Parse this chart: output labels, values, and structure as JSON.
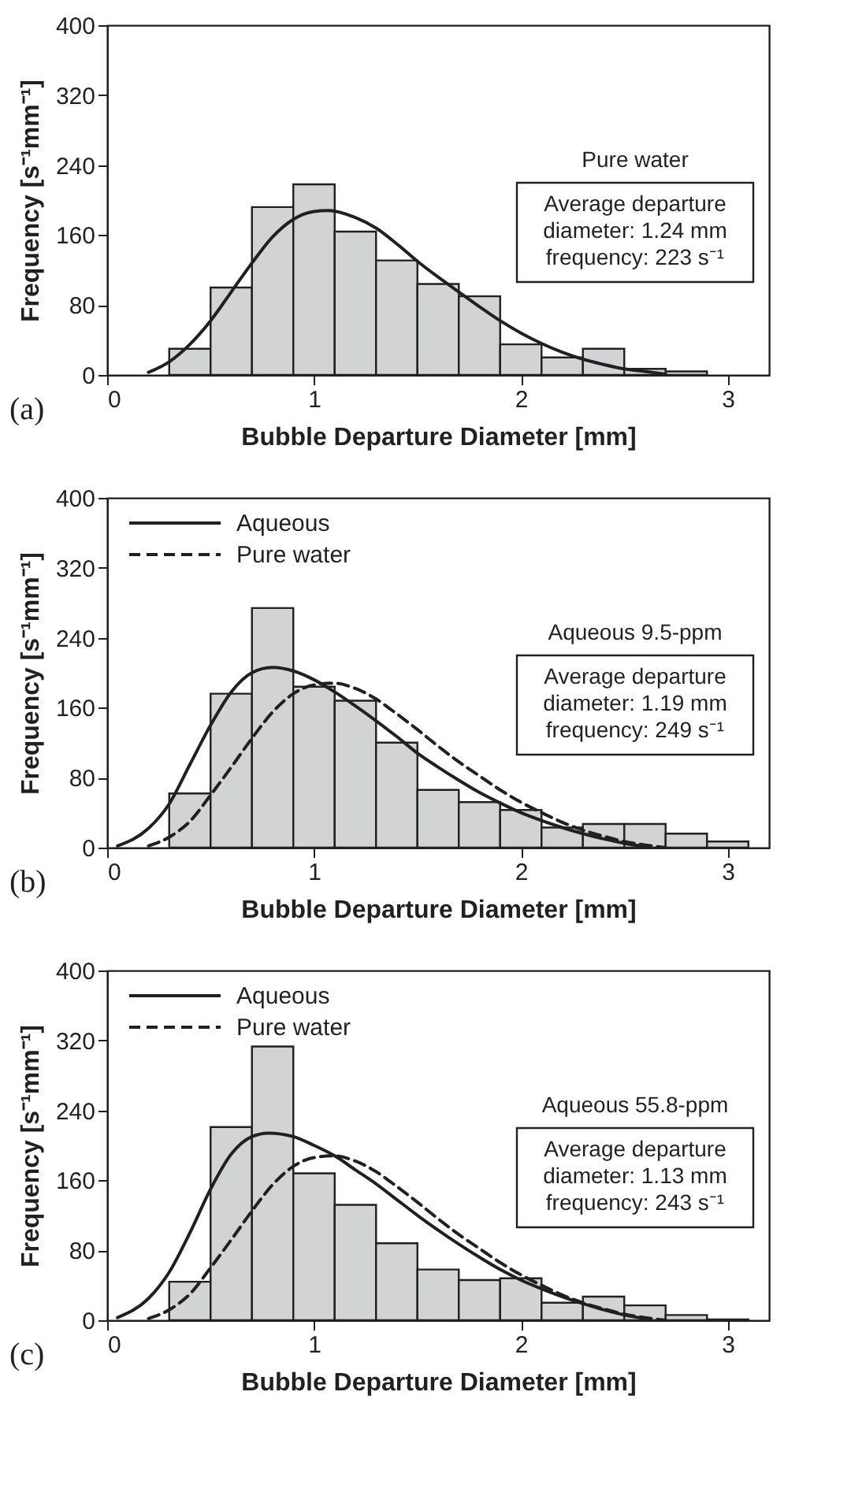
{
  "chart_data": [
    {
      "type": "histogram",
      "xlabel": "Bubble Departure Diameter [mm]",
      "ylabel": "Frequency [s⁻¹mm⁻¹]",
      "xlim": [
        0,
        3.2
      ],
      "ylim": [
        0,
        400
      ],
      "xticks": [
        0,
        1,
        2,
        3
      ],
      "yticks": [
        0,
        80,
        160,
        240,
        320,
        400
      ],
      "grid": false,
      "legend": false,
      "annotations": [
        "(a)",
        "Pure water",
        "Average departure\ndiameter: 1.24 mm\nfrequency:  223 s⁻¹"
      ],
      "series": [
        {
          "color": "#d1d3d4",
          "bins": [
            0.3,
            0.5,
            0.7,
            0.9,
            1.1,
            1.3,
            1.5,
            1.7,
            1.9,
            2.1,
            2.3,
            2.5,
            2.7,
            2.9
          ],
          "values": [
            30,
            100,
            192,
            218,
            164,
            131,
            104,
            90,
            35,
            20,
            30,
            7,
            4
          ]
        },
        {
          "type": "line",
          "color": "#231f20",
          "line_style": "solid",
          "x": [
            0.2,
            0.3,
            0.4,
            0.5,
            0.6,
            0.7,
            0.8,
            0.9,
            1.0,
            1.07,
            1.2,
            1.3,
            1.4,
            1.5,
            1.6,
            1.7,
            1.8,
            1.9,
            2.0,
            2.1,
            2.2,
            2.3,
            2.4,
            2.5,
            2.6,
            2.7
          ],
          "values": [
            3,
            15,
            35,
            62,
            95,
            128,
            158,
            178,
            187,
            188,
            180,
            168,
            150,
            130,
            112,
            95,
            78,
            62,
            48,
            36,
            26,
            18,
            12,
            7,
            4,
            1
          ]
        }
      ]
    },
    {
      "type": "histogram",
      "xlabel": "Bubble Departure Diameter [mm]",
      "ylabel": "Frequency [s⁻¹mm⁻¹]",
      "xlim": [
        0,
        3.2
      ],
      "ylim": [
        0,
        400
      ],
      "xticks": [
        0,
        1,
        2,
        3
      ],
      "yticks": [
        0,
        80,
        160,
        240,
        320,
        400
      ],
      "grid": false,
      "legend": "top left",
      "annotations": [
        "(b)",
        "Aqueous 9.5-ppm",
        "Average departure\ndiameter: 1.19 mm\nfrequency:  249 s⁻¹"
      ],
      "series": [
        {
          "color": "#d1d3d4",
          "bins": [
            0.3,
            0.5,
            0.7,
            0.9,
            1.1,
            1.3,
            1.5,
            1.7,
            1.9,
            2.1,
            2.3,
            2.5,
            2.7,
            2.9,
            3.1
          ],
          "values": [
            62,
            176,
            274,
            184,
            168,
            120,
            66,
            52,
            43,
            23,
            27,
            27,
            16,
            7
          ]
        },
        {
          "type": "line",
          "name": "Aqueous",
          "color": "#231f20",
          "line_style": "solid",
          "x": [
            0.05,
            0.2,
            0.3,
            0.4,
            0.5,
            0.6,
            0.7,
            0.8,
            0.9,
            1.0,
            1.1,
            1.2,
            1.3,
            1.4,
            1.5,
            1.6,
            1.7,
            1.8,
            1.9,
            2.0,
            2.1,
            2.2,
            2.3,
            2.4,
            2.5,
            2.6
          ],
          "values": [
            2,
            22,
            50,
            95,
            140,
            178,
            200,
            206,
            202,
            192,
            178,
            162,
            145,
            127,
            108,
            92,
            77,
            63,
            51,
            40,
            31,
            23,
            16,
            10,
            5,
            1
          ]
        },
        {
          "type": "line",
          "name": "Pure water",
          "color": "#231f20",
          "line_style": "dashed",
          "x": [
            0.2,
            0.3,
            0.4,
            0.5,
            0.6,
            0.7,
            0.8,
            0.9,
            1.0,
            1.1,
            1.2,
            1.3,
            1.4,
            1.5,
            1.6,
            1.7,
            1.8,
            1.9,
            2.0,
            2.1,
            2.2,
            2.3,
            2.4,
            2.5,
            2.6,
            2.7
          ],
          "values": [
            2,
            12,
            30,
            60,
            92,
            125,
            155,
            176,
            186,
            188,
            182,
            170,
            153,
            135,
            116,
            98,
            82,
            66,
            52,
            40,
            29,
            20,
            13,
            7,
            3,
            0
          ]
        }
      ]
    },
    {
      "type": "histogram",
      "xlabel": "Bubble Departure Diameter [mm]",
      "ylabel": "Frequency [s⁻¹mm⁻¹]",
      "xlim": [
        0,
        3.2
      ],
      "ylim": [
        0,
        400
      ],
      "xticks": [
        0,
        1,
        2,
        3
      ],
      "yticks": [
        0,
        80,
        160,
        240,
        320,
        400
      ],
      "grid": false,
      "legend": "top left",
      "annotations": [
        "(c)",
        "Aqueous 55.8-ppm",
        "Average departure\ndiameter: 1.13 mm\nfrequency:  243 s⁻¹"
      ],
      "series": [
        {
          "color": "#d1d3d4",
          "bins": [
            0.3,
            0.5,
            0.7,
            0.9,
            1.1,
            1.3,
            1.5,
            1.7,
            1.9,
            2.1,
            2.3,
            2.5,
            2.7,
            2.9,
            3.1
          ],
          "values": [
            44,
            221,
            313,
            168,
            132,
            88,
            58,
            46,
            48,
            20,
            27,
            17,
            6,
            1
          ]
        },
        {
          "type": "line",
          "name": "Aqueous",
          "color": "#231f20",
          "line_style": "solid",
          "x": [
            0.05,
            0.2,
            0.3,
            0.4,
            0.5,
            0.6,
            0.7,
            0.78,
            0.9,
            1.0,
            1.1,
            1.2,
            1.3,
            1.4,
            1.5,
            1.6,
            1.7,
            1.8,
            1.9,
            2.0,
            2.1,
            2.2,
            2.3,
            2.4,
            2.5,
            2.6
          ],
          "values": [
            3,
            25,
            55,
            100,
            150,
            190,
            210,
            214,
            210,
            200,
            188,
            172,
            156,
            138,
            120,
            103,
            87,
            72,
            58,
            46,
            36,
            27,
            19,
            12,
            6,
            2
          ]
        },
        {
          "type": "line",
          "name": "Pure water",
          "color": "#231f20",
          "line_style": "dashed",
          "x": [
            0.2,
            0.3,
            0.4,
            0.5,
            0.6,
            0.7,
            0.8,
            0.9,
            1.0,
            1.1,
            1.2,
            1.3,
            1.4,
            1.5,
            1.6,
            1.7,
            1.8,
            1.9,
            2.0,
            2.1,
            2.2,
            2.3,
            2.4,
            2.5,
            2.6,
            2.7
          ],
          "values": [
            2,
            12,
            30,
            60,
            92,
            125,
            155,
            176,
            186,
            188,
            182,
            170,
            153,
            135,
            116,
            98,
            82,
            66,
            52,
            40,
            29,
            20,
            13,
            7,
            3,
            0
          ]
        }
      ]
    }
  ]
}
